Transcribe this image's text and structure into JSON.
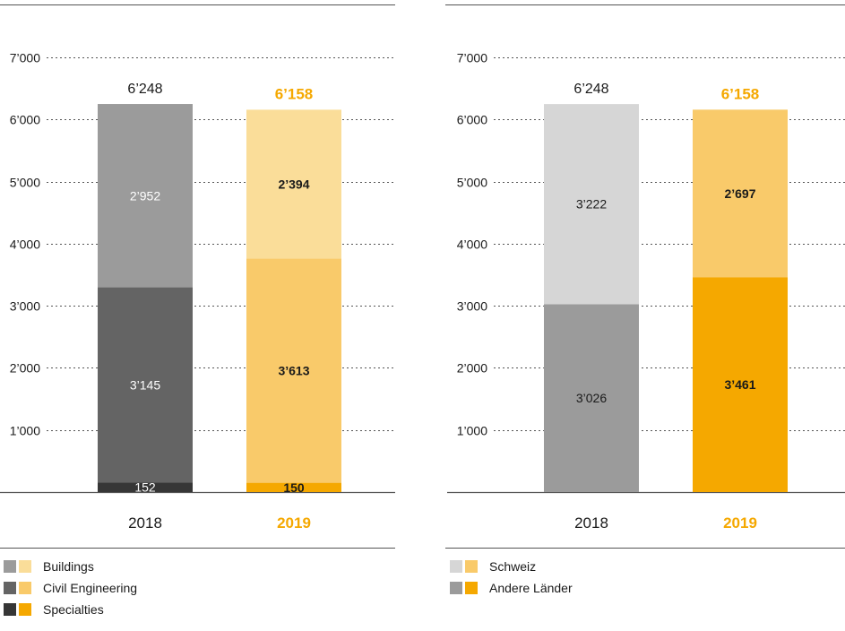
{
  "chart_data": [
    {
      "type": "bar",
      "stacked": true,
      "categories": [
        "2018",
        "2019"
      ],
      "ylim": [
        0,
        7000
      ],
      "yticks": [
        "1’000",
        "2’000",
        "3’000",
        "4’000",
        "5’000",
        "6’000",
        "7’000"
      ],
      "ytick_values": [
        1000,
        2000,
        3000,
        4000,
        5000,
        6000,
        7000
      ],
      "grid": "dotted",
      "totals": [
        "6’248",
        "6’158"
      ],
      "total_values": [
        6248,
        6158
      ],
      "series": [
        {
          "key": "specialties",
          "values": [
            152,
            150
          ],
          "labels": [
            "152",
            "150"
          ],
          "colors": [
            "#363636",
            "#f5a800"
          ]
        },
        {
          "key": "civil",
          "values": [
            3145,
            3613
          ],
          "labels": [
            "3’145",
            "3’613"
          ],
          "colors": [
            "#646464",
            "#f9ca6a"
          ]
        },
        {
          "key": "buildings",
          "values": [
            2952,
            2394
          ],
          "labels": [
            "2’952",
            "2’394"
          ],
          "colors": [
            "#9b9b9b",
            "#fadd99"
          ]
        }
      ],
      "legend": [
        {
          "label": "Buildings",
          "colors": [
            "#9b9b9b",
            "#fadd99"
          ]
        },
        {
          "label": "Civil Engineering",
          "colors": [
            "#646464",
            "#f9ca6a"
          ]
        },
        {
          "label": "Specialties",
          "colors": [
            "#363636",
            "#f5a800"
          ]
        }
      ]
    },
    {
      "type": "bar",
      "stacked": true,
      "categories": [
        "2018",
        "2019"
      ],
      "ylim": [
        0,
        7000
      ],
      "yticks": [
        "1’000",
        "2’000",
        "3’000",
        "4’000",
        "5’000",
        "6’000",
        "7’000"
      ],
      "ytick_values": [
        1000,
        2000,
        3000,
        4000,
        5000,
        6000,
        7000
      ],
      "grid": "dotted",
      "totals": [
        "6’248",
        "6’158"
      ],
      "total_values": [
        6248,
        6158
      ],
      "series": [
        {
          "key": "andere",
          "values": [
            3026,
            3461
          ],
          "labels": [
            "3’026",
            "3’461"
          ],
          "colors": [
            "#9b9b9b",
            "#f5a800"
          ]
        },
        {
          "key": "schweiz",
          "values": [
            3222,
            2697
          ],
          "labels": [
            "3’222",
            "2’697"
          ],
          "colors": [
            "#d6d6d6",
            "#f9ca6a"
          ]
        }
      ],
      "legend": [
        {
          "label": "Schweiz",
          "colors": [
            "#d6d6d6",
            "#f9ca6a"
          ]
        },
        {
          "label": "Andere Länder",
          "colors": [
            "#9b9b9b",
            "#f5a800"
          ]
        }
      ]
    }
  ],
  "colors": {
    "year_2018_text": "#1a1a1a",
    "year_2019_text": "#f5a800",
    "rule": "#555555",
    "grid": "#555555"
  }
}
